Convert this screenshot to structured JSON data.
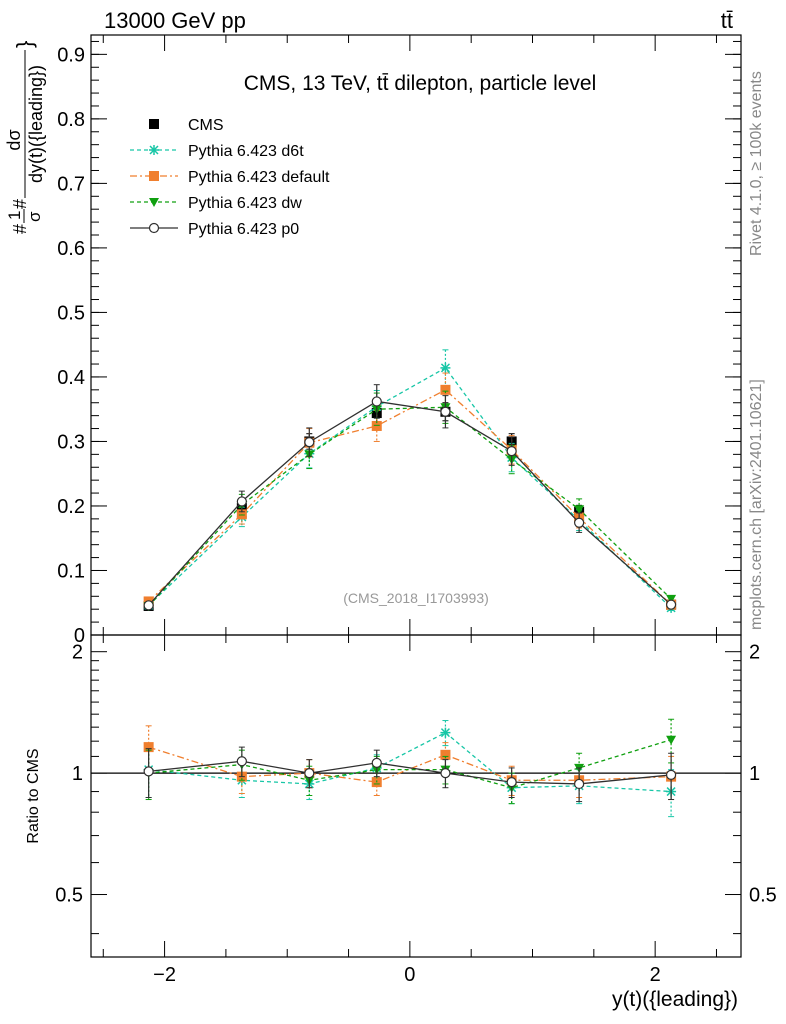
{
  "header": {
    "energy_label": "13000 GeV pp",
    "process_label": "tt̄"
  },
  "side": {
    "rivet_label": "Rivet 4.1.0, ≥ 100k events",
    "mcplots_label": "mcplots.cern.ch [arXiv:2401.10621]"
  },
  "watermark": "(CMS_2018_I1703993)",
  "chart_data": [
    {
      "type": "line",
      "title": "CMS, 13 TeV, tt̄ dilepton, particle level",
      "xlabel": "y(t)({leading})",
      "ylabel_parts": {
        "hash1": "#",
        "one": "1",
        "sigma": "σ",
        "hash2": "#",
        "num": "dσ",
        "den": "dy(t)({leading})",
        "brace": "}"
      },
      "xlim": [
        -2.6,
        2.7
      ],
      "ylim": [
        0,
        0.93
      ],
      "xticks": [
        -2,
        0,
        2
      ],
      "yticks": [
        0,
        0.1,
        0.2,
        0.3,
        0.4,
        0.5,
        0.6,
        0.7,
        0.8,
        0.9
      ],
      "ytick_labels": [
        "0",
        "0.1",
        "0.2",
        "0.3",
        "0.4",
        "0.5",
        "0.6",
        "0.7",
        "0.8",
        "0.9"
      ],
      "x": [
        -2.13,
        -1.37,
        -0.82,
        -0.27,
        0.29,
        0.83,
        1.38,
        2.13
      ],
      "series": [
        {
          "name": "CMS",
          "color": "#000000",
          "marker": "square",
          "line": "none",
          "values": [
            0.045,
            0.197,
            0.3,
            0.344,
            0.346,
            0.3,
            0.191,
            0.047
          ],
          "errors": [
            0.003,
            0.01,
            0.012,
            0.015,
            0.014,
            0.012,
            0.01,
            0.003
          ]
        },
        {
          "name": "Pythia 6.423 d6t",
          "color": "#17c6a6",
          "marker": "star",
          "line": "dashed",
          "values": [
            0.046,
            0.183,
            0.281,
            0.354,
            0.414,
            0.275,
            0.178,
            0.042
          ],
          "errors": [
            0.004,
            0.015,
            0.022,
            0.025,
            0.028,
            0.022,
            0.016,
            0.004
          ]
        },
        {
          "name": "Pythia 6.423 default",
          "color": "#f07f2e",
          "marker": "square",
          "line": "dashdot",
          "values": [
            0.052,
            0.187,
            0.298,
            0.324,
            0.38,
            0.287,
            0.182,
            0.047
          ],
          "errors": [
            0.004,
            0.015,
            0.022,
            0.024,
            0.026,
            0.022,
            0.016,
            0.004
          ]
        },
        {
          "name": "Pythia 6.423 dw",
          "color": "#10a010",
          "marker": "triangle-down",
          "line": "dashed",
          "values": [
            0.045,
            0.202,
            0.28,
            0.35,
            0.353,
            0.272,
            0.195,
            0.056
          ],
          "errors": [
            0.004,
            0.016,
            0.022,
            0.025,
            0.025,
            0.022,
            0.016,
            0.004
          ]
        },
        {
          "name": "Pythia 6.423 p0",
          "color": "#303030",
          "marker": "circle",
          "line": "solid",
          "values": [
            0.046,
            0.207,
            0.299,
            0.362,
            0.346,
            0.285,
            0.174,
            0.047
          ],
          "errors": [
            0.004,
            0.016,
            0.022,
            0.026,
            0.025,
            0.022,
            0.015,
            0.004
          ]
        }
      ]
    },
    {
      "type": "line",
      "title": "",
      "xlabel": "y(t)({leading})",
      "ylabel": "Ratio to CMS",
      "xlim": [
        -2.6,
        2.7
      ],
      "ylim": [
        0.35,
        2.2
      ],
      "yticks": [
        0.5,
        1,
        2
      ],
      "ytick_labels": [
        "0.5",
        "1",
        "2"
      ],
      "xtick_labels": [
        "−2",
        "0",
        "2"
      ],
      "x": [
        -2.13,
        -1.37,
        -0.82,
        -0.27,
        0.29,
        0.83,
        1.38,
        2.13
      ],
      "series": [
        {
          "name": "Pythia 6.423 d6t",
          "color": "#17c6a6",
          "marker": "star",
          "line": "dashed",
          "values": [
            1.02,
            0.96,
            0.94,
            1.03,
            1.26,
            0.92,
            0.93,
            0.9
          ],
          "errors": [
            0.15,
            0.09,
            0.08,
            0.08,
            0.09,
            0.08,
            0.09,
            0.12
          ]
        },
        {
          "name": "Pythia 6.423 default",
          "color": "#f07f2e",
          "marker": "square",
          "line": "dashdot",
          "values": [
            1.16,
            0.98,
            1.0,
            0.95,
            1.11,
            0.96,
            0.96,
            0.98
          ],
          "errors": [
            0.15,
            0.09,
            0.08,
            0.07,
            0.08,
            0.08,
            0.09,
            0.12
          ]
        },
        {
          "name": "Pythia 6.423 dw",
          "color": "#10a010",
          "marker": "triangle-down",
          "line": "dashed",
          "values": [
            1.0,
            1.05,
            0.96,
            1.02,
            1.02,
            0.92,
            1.03,
            1.21
          ],
          "errors": [
            0.14,
            0.09,
            0.08,
            0.08,
            0.08,
            0.08,
            0.09,
            0.15
          ]
        },
        {
          "name": "Pythia 6.423 p0",
          "color": "#303030",
          "marker": "circle",
          "line": "solid",
          "values": [
            1.01,
            1.07,
            1.0,
            1.06,
            1.0,
            0.95,
            0.94,
            0.99
          ],
          "errors": [
            0.14,
            0.09,
            0.08,
            0.08,
            0.08,
            0.08,
            0.09,
            0.13
          ]
        }
      ]
    }
  ]
}
